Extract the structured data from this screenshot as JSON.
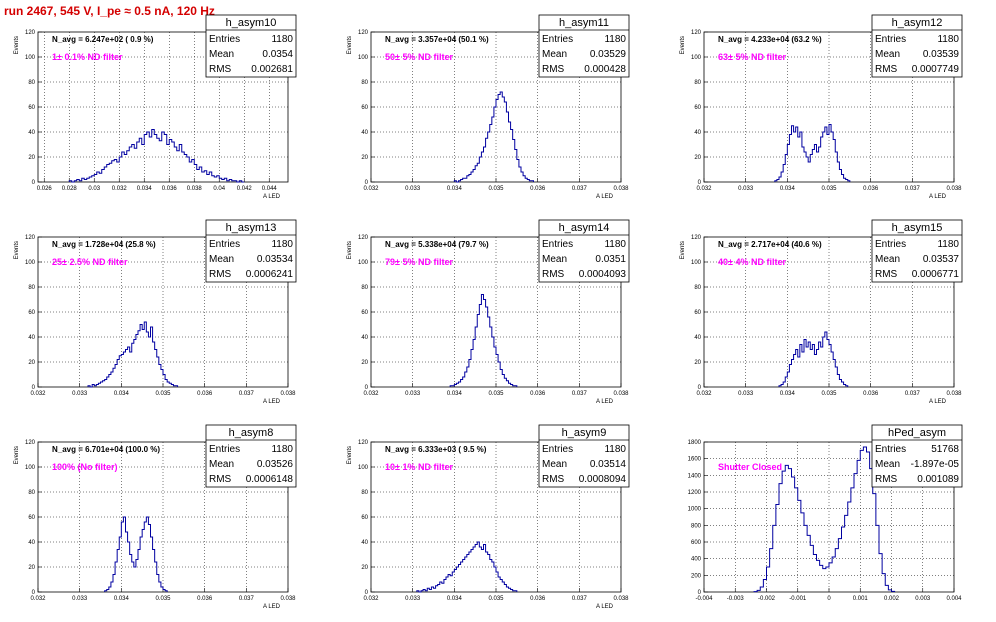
{
  "title": "run 2467,   545 V, I_pe ≈ 0.5 nA, 120 Hz",
  "chart_data": [
    {
      "type": "bar",
      "name": "h_asym10",
      "ylabel": "Events",
      "xlabel": "A_{LED}",
      "xlim": [
        0.0255,
        0.0455
      ],
      "ylim": [
        0,
        120
      ],
      "xticks": [
        0.026,
        0.028,
        0.03,
        0.032,
        0.034,
        0.036,
        0.038,
        0.04,
        0.042,
        0.044
      ],
      "yticks": [
        0,
        20,
        40,
        60,
        80,
        100,
        120
      ],
      "stats": {
        "entries": "1180",
        "mean": "0.0354",
        "rms": "0.002681"
      },
      "navg": "N_avg = 6.247e+02 ( 0.9 %)",
      "filter": "1± 0.1% ND filter",
      "bins": {
        "start": 0.028,
        "width": 0.0002,
        "counts": [
          1,
          0,
          1,
          2,
          1,
          3,
          2,
          3,
          4,
          5,
          6,
          8,
          7,
          10,
          12,
          14,
          15,
          17,
          18,
          16,
          20,
          24,
          22,
          25,
          28,
          30,
          27,
          32,
          35,
          30,
          38,
          40,
          36,
          42,
          38,
          35,
          33,
          40,
          38,
          30,
          34,
          32,
          28,
          25,
          30,
          24,
          22,
          20,
          16,
          18,
          14,
          10,
          12,
          8,
          9,
          6,
          8,
          5,
          4,
          5,
          3,
          2,
          3,
          1,
          2,
          1,
          1,
          0,
          1,
          0
        ]
      }
    },
    {
      "type": "bar",
      "name": "h_asym11",
      "ylabel": "Events",
      "xlabel": "A_{LED}",
      "xlim": [
        0.032,
        0.038
      ],
      "ylim": [
        0,
        120
      ],
      "xticks": [
        0.032,
        0.033,
        0.034,
        0.035,
        0.036,
        0.037,
        0.038
      ],
      "yticks": [
        0,
        20,
        40,
        60,
        80,
        100,
        120
      ],
      "stats": {
        "entries": "1180",
        "mean": "0.03529",
        "rms": "0.000428"
      },
      "navg": "N_avg = 3.357e+04 (50.1 %)",
      "filter": "50± 5% ND filter",
      "bins": {
        "start": 0.034,
        "width": 5e-05,
        "counts": [
          1,
          0,
          1,
          2,
          3,
          3,
          5,
          6,
          8,
          10,
          13,
          15,
          20,
          24,
          28,
          35,
          40,
          46,
          52,
          60,
          66,
          70,
          72,
          68,
          64,
          56,
          48,
          42,
          34,
          26,
          18,
          12,
          8,
          5,
          3,
          2,
          1,
          1
        ]
      }
    },
    {
      "type": "bar",
      "name": "h_asym12",
      "ylabel": "Events",
      "xlabel": "A_{LED}",
      "xlim": [
        0.032,
        0.038
      ],
      "ylim": [
        0,
        120
      ],
      "xticks": [
        0.032,
        0.033,
        0.034,
        0.035,
        0.036,
        0.037,
        0.038
      ],
      "yticks": [
        0,
        20,
        40,
        60,
        80,
        100,
        120
      ],
      "stats": {
        "entries": "1180",
        "mean": "0.03539",
        "rms": "0.0007749"
      },
      "navg": "N_avg = 4.233e+04 (63.2 %)",
      "filter": "63± 5% ND filter",
      "bins": {
        "start": 0.0337,
        "width": 5e-05,
        "counts": [
          1,
          2,
          4,
          8,
          14,
          22,
          30,
          38,
          45,
          40,
          44,
          36,
          40,
          28,
          24,
          20,
          16,
          22,
          26,
          30,
          24,
          28,
          36,
          40,
          44,
          38,
          46,
          40,
          34,
          24,
          16,
          10,
          6,
          3,
          2,
          1
        ]
      }
    },
    {
      "type": "bar",
      "name": "h_asym13",
      "ylabel": "Events",
      "xlabel": "A_{LED}",
      "xlim": [
        0.032,
        0.038
      ],
      "ylim": [
        0,
        120
      ],
      "xticks": [
        0.032,
        0.033,
        0.034,
        0.035,
        0.036,
        0.037,
        0.038
      ],
      "yticks": [
        0,
        20,
        40,
        60,
        80,
        100,
        120
      ],
      "stats": {
        "entries": "1180",
        "mean": "0.03534",
        "rms": "0.0006241"
      },
      "navg": "N_avg = 1.728e+04 (25.8 %)",
      "filter": "25± 2.5% ND filter",
      "bins": {
        "start": 0.0332,
        "width": 5e-05,
        "counts": [
          1,
          0,
          2,
          1,
          2,
          3,
          4,
          5,
          6,
          8,
          10,
          12,
          15,
          18,
          22,
          25,
          26,
          28,
          30,
          32,
          28,
          35,
          38,
          42,
          45,
          50,
          46,
          52,
          44,
          40,
          48,
          36,
          30,
          24,
          18,
          14,
          10,
          6,
          4,
          3,
          2,
          1,
          1
        ]
      }
    },
    {
      "type": "bar",
      "name": "h_asym14",
      "ylabel": "Events",
      "xlabel": "A_{LED}",
      "xlim": [
        0.032,
        0.038
      ],
      "ylim": [
        0,
        120
      ],
      "xticks": [
        0.032,
        0.033,
        0.034,
        0.035,
        0.036,
        0.037,
        0.038
      ],
      "yticks": [
        0,
        20,
        40,
        60,
        80,
        100,
        120
      ],
      "stats": {
        "entries": "1180",
        "mean": "0.0351",
        "rms": "0.0004093"
      },
      "navg": "N_avg = 5.338e+04 (79.7 %)",
      "filter": "79± 5% ND filter",
      "bins": {
        "start": 0.0339,
        "width": 5e-05,
        "counts": [
          1,
          1,
          2,
          3,
          4,
          6,
          8,
          12,
          16,
          22,
          30,
          38,
          48,
          58,
          66,
          74,
          70,
          64,
          56,
          48,
          40,
          32,
          26,
          20,
          14,
          10,
          7,
          5,
          3,
          2,
          1,
          1
        ]
      }
    },
    {
      "type": "bar",
      "name": "h_asym15",
      "ylabel": "Events",
      "xlabel": "A_{LED}",
      "xlim": [
        0.032,
        0.038
      ],
      "ylim": [
        0,
        120
      ],
      "xticks": [
        0.032,
        0.033,
        0.034,
        0.035,
        0.036,
        0.037,
        0.038
      ],
      "yticks": [
        0,
        20,
        40,
        60,
        80,
        100,
        120
      ],
      "stats": {
        "entries": "1180",
        "mean": "0.03537",
        "rms": "0.0006771"
      },
      "navg": "N_avg = 2.717e+04 (40.6 %)",
      "filter": "40± 4% ND filter",
      "bins": {
        "start": 0.0338,
        "width": 5e-05,
        "counts": [
          1,
          2,
          4,
          8,
          12,
          18,
          22,
          26,
          30,
          24,
          34,
          28,
          38,
          32,
          36,
          30,
          34,
          26,
          30,
          36,
          32,
          40,
          44,
          38,
          34,
          28,
          22,
          16,
          10,
          6,
          4,
          2,
          1
        ]
      }
    },
    {
      "type": "bar",
      "name": "h_asym8",
      "ylabel": "Events",
      "xlabel": "A_{LED}",
      "xlim": [
        0.032,
        0.038
      ],
      "ylim": [
        0,
        120
      ],
      "xticks": [
        0.032,
        0.033,
        0.034,
        0.035,
        0.036,
        0.037,
        0.038
      ],
      "yticks": [
        0,
        20,
        40,
        60,
        80,
        100,
        120
      ],
      "stats": {
        "entries": "1180",
        "mean": "0.03526",
        "rms": "0.0006148"
      },
      "navg": "N_avg = 6.701e+04 (100.0 %)",
      "filter": "100% (No filter)",
      "bins": {
        "start": 0.0336,
        "width": 5e-05,
        "counts": [
          1,
          2,
          4,
          8,
          14,
          24,
          34,
          44,
          56,
          60,
          48,
          40,
          30,
          24,
          20,
          26,
          34,
          44,
          50,
          56,
          60,
          54,
          44,
          34,
          24,
          14,
          8,
          4,
          2,
          1
        ]
      }
    },
    {
      "type": "bar",
      "name": "h_asym9",
      "ylabel": "Events",
      "xlabel": "A_{LED}",
      "xlim": [
        0.032,
        0.038
      ],
      "ylim": [
        0,
        120
      ],
      "xticks": [
        0.032,
        0.033,
        0.034,
        0.035,
        0.036,
        0.037,
        0.038
      ],
      "yticks": [
        0,
        20,
        40,
        60,
        80,
        100,
        120
      ],
      "stats": {
        "entries": "1180",
        "mean": "0.03514",
        "rms": "0.0008094"
      },
      "navg": "N_avg = 6.333e+03 ( 9.5 %)",
      "filter": "10± 1% ND filter",
      "bins": {
        "start": 0.0331,
        "width": 5e-05,
        "counts": [
          1,
          0,
          1,
          2,
          1,
          3,
          2,
          4,
          3,
          5,
          6,
          8,
          7,
          10,
          12,
          14,
          13,
          16,
          18,
          20,
          22,
          24,
          26,
          28,
          30,
          32,
          34,
          36,
          38,
          40,
          36,
          34,
          38,
          32,
          30,
          26,
          24,
          20,
          16,
          12,
          10,
          8,
          6,
          4,
          3,
          2,
          1,
          1
        ]
      }
    },
    {
      "type": "bar",
      "name": "hPed_asym",
      "ylabel": "",
      "xlabel": "",
      "xlim": [
        -0.004,
        0.004
      ],
      "ylim": [
        0,
        1800
      ],
      "xticks": [
        -0.004,
        -0.003,
        -0.002,
        -0.001,
        0,
        0.001,
        0.002,
        0.003,
        0.004
      ],
      "yticks": [
        0,
        200,
        400,
        600,
        800,
        1000,
        1200,
        1400,
        1600,
        1800
      ],
      "stats": {
        "entries": "51768",
        "mean": "-1.897e-05",
        "rms": "0.001089"
      },
      "navg": "",
      "filter": "Shutter Closed",
      "bins": {
        "start": -0.0024,
        "width": 0.0001,
        "counts": [
          5,
          20,
          60,
          150,
          300,
          520,
          800,
          1050,
          1300,
          1450,
          1520,
          1480,
          1380,
          1250,
          1100,
          950,
          800,
          680,
          560,
          450,
          380,
          320,
          280,
          300,
          350,
          420,
          520,
          640,
          780,
          920,
          1080,
          1250,
          1420,
          1580,
          1700,
          1740,
          1680,
          1480,
          1180,
          800,
          460,
          220,
          80,
          25,
          8
        ]
      }
    }
  ]
}
